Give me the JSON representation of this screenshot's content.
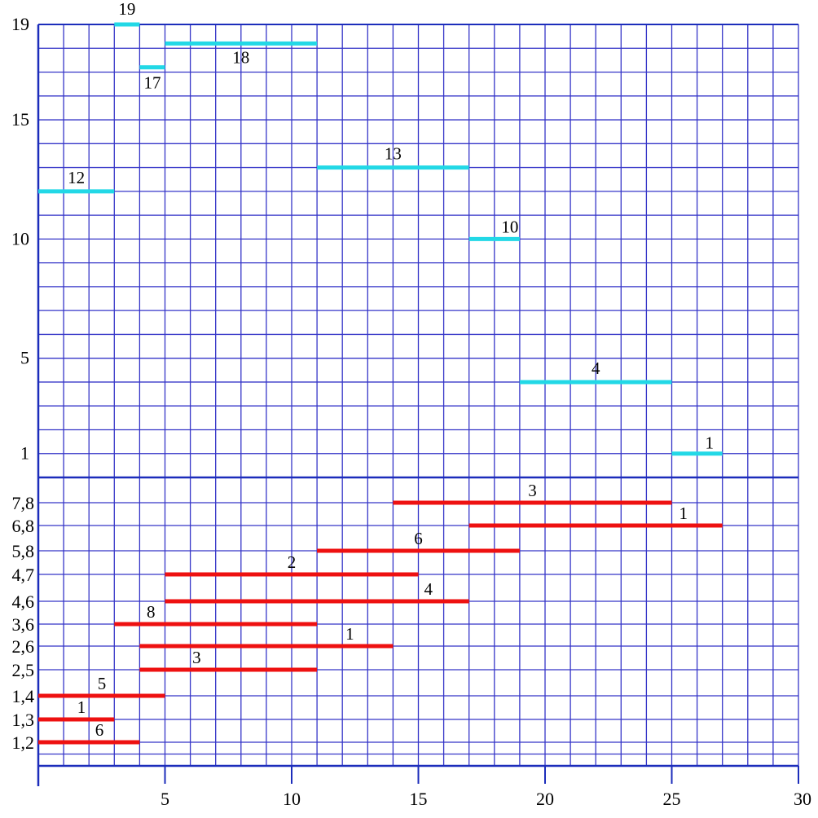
{
  "colors": {
    "grid": "#3535c8",
    "separator": "#1c2dbb",
    "cyan_segment": "#22d8e6",
    "red_segment": "#ee1111"
  },
  "x_axis": {
    "range": [
      0,
      30
    ],
    "ticks": [
      {
        "value": 5,
        "label": "5"
      },
      {
        "value": 10,
        "label": "10"
      },
      {
        "value": 15,
        "label": "15"
      },
      {
        "value": 20,
        "label": "20"
      },
      {
        "value": 25,
        "label": "25"
      },
      {
        "value": 30,
        "label": "30"
      }
    ]
  },
  "upper_panel": {
    "y_range": [
      0,
      19
    ],
    "y_ticks": [
      {
        "value": 1,
        "label": "1"
      },
      {
        "value": 5,
        "label": "5"
      },
      {
        "value": 10,
        "label": "10"
      },
      {
        "value": 15,
        "label": "15"
      },
      {
        "value": 19,
        "label": "19"
      }
    ],
    "segments": [
      {
        "label": "19",
        "y": 19,
        "x0": 3,
        "x1": 4
      },
      {
        "label": "18",
        "y": 18.2,
        "x0": 5,
        "x1": 11
      },
      {
        "label": "17",
        "y": 17.2,
        "x0": 4,
        "x1": 5
      },
      {
        "label": "13",
        "y": 13,
        "x0": 11,
        "x1": 17
      },
      {
        "label": "12",
        "y": 12,
        "x0": 0,
        "x1": 3
      },
      {
        "label": "10",
        "y": 10,
        "x0": 17,
        "x1": 19
      },
      {
        "label": "4",
        "y": 4,
        "x0": 19,
        "x1": 25
      },
      {
        "label": "1",
        "y": 1,
        "x0": 25,
        "x1": 27
      }
    ]
  },
  "lower_panel": {
    "rows": [
      {
        "label": "7,8",
        "segment_label": "3",
        "x0": 14,
        "x1": 25
      },
      {
        "label": "6,8",
        "segment_label": "1",
        "x0": 17,
        "x1": 27
      },
      {
        "label": "5,8",
        "segment_label": "6",
        "x0": 11,
        "x1": 19
      },
      {
        "label": "4,7",
        "segment_label": "2",
        "x0": 5,
        "x1": 15
      },
      {
        "label": "4,6",
        "segment_label": "4",
        "x0": 5,
        "x1": 17
      },
      {
        "label": "3,6",
        "segment_label": "8",
        "x0": 3,
        "x1": 11
      },
      {
        "label": "2,6",
        "segment_label": "1",
        "x0": 4,
        "x1": 14
      },
      {
        "label": "2,5",
        "segment_label": "3",
        "x0": 4,
        "x1": 11
      },
      {
        "label": "1,4",
        "segment_label": "5",
        "x0": 0,
        "x1": 5
      },
      {
        "label": "1,3",
        "segment_label": "1",
        "x0": 0,
        "x1": 3
      },
      {
        "label": "1,2",
        "segment_label": "6",
        "x0": 0,
        "x1": 4
      }
    ]
  }
}
